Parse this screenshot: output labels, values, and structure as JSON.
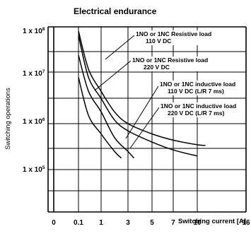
{
  "chart_data": {
    "type": "line",
    "title": "Electrical endurance",
    "xlabel": "Switching current [A]",
    "ylabel": "Switching operations",
    "x_ticks": [
      "0",
      "0.1",
      "1",
      "3",
      "5",
      "7",
      "10",
      "16"
    ],
    "y_ticks": [
      {
        "base": "1 x 10",
        "exp": "8"
      },
      {
        "base": "1 x 10",
        "exp": "7"
      },
      {
        "base": "1 x 10",
        "exp": "6"
      },
      {
        "base": "1 x 10",
        "exp": "5"
      }
    ],
    "grid": true,
    "series": [
      {
        "name": "1NO or 1NC Resistive load\n110 V DC",
        "points": [
          [
            0.1,
            100000000
          ],
          [
            0.5,
            15000000
          ],
          [
            1,
            5000000
          ],
          [
            2,
            1800000
          ],
          [
            3,
            1000000
          ],
          [
            5,
            600000
          ],
          [
            7,
            440000
          ],
          [
            10,
            350000
          ],
          [
            11,
            340000
          ]
        ]
      },
      {
        "name": "1NO or 1NC Resistive load\n220 V DC",
        "points": [
          [
            0.1,
            80000000
          ],
          [
            0.5,
            10000000
          ],
          [
            1,
            3500000
          ],
          [
            2,
            1200000
          ],
          [
            3,
            700000
          ],
          [
            5,
            400000
          ],
          [
            7,
            270000
          ],
          [
            10,
            200000
          ]
        ]
      },
      {
        "name": "1NO or 1NC inductive load\n110 V DC (L/R 7 ms)",
        "points": [
          [
            0.1,
            30000000
          ],
          [
            0.5,
            5000000
          ],
          [
            1,
            1800000
          ],
          [
            2,
            500000
          ],
          [
            3,
            250000
          ],
          [
            3.5,
            180000
          ]
        ]
      },
      {
        "name": "1NO or 1NC inductive load\n220 V DC (L/R 7 ms)",
        "points": [
          [
            0.1,
            10000000
          ],
          [
            0.5,
            1500000
          ],
          [
            1,
            600000
          ],
          [
            2,
            250000
          ],
          [
            2.5,
            180000
          ]
        ]
      }
    ]
  }
}
